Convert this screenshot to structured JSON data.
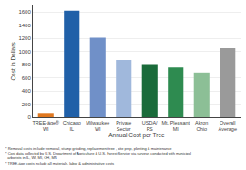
{
  "chart_data": {
    "type": "bar",
    "categories": [
      "TREE-äge®\nWI",
      "Chicago\nIL",
      "Milwaukee\nWI",
      "Private\nSector",
      "USDA/\nFS",
      "Mt. Pleasant\nMI",
      "Akron\nOhio",
      "Overall\nAverage"
    ],
    "values": [
      65,
      1620,
      1210,
      870,
      810,
      755,
      680,
      1050
    ],
    "colors": [
      "#e07820",
      "#2060a8",
      "#7090c8",
      "#a0b8dc",
      "#1a6b3a",
      "#2e8b50",
      "#8cbf96",
      "#9a9a9a"
    ],
    "xlabel": "Annual Cost per Tree",
    "ylabel": "Cost in Dollars",
    "ylim": [
      0,
      1700
    ],
    "yticks": [
      0,
      200,
      400,
      600,
      800,
      1000,
      1200,
      1400,
      1600
    ],
    "grid": true,
    "annotations": [
      "* Removal costs include: removal, stump grinding, replacement tree , site prep, planting & maintenance",
      "* Cost data collected by U.S. Department of Agriculture & U.S. Forest Service via surveys conducted with municipal",
      "  arborists in IL, WI, MI, OH, MN",
      "* TREE-äge costs include all materials, labor & administrative costs"
    ]
  }
}
